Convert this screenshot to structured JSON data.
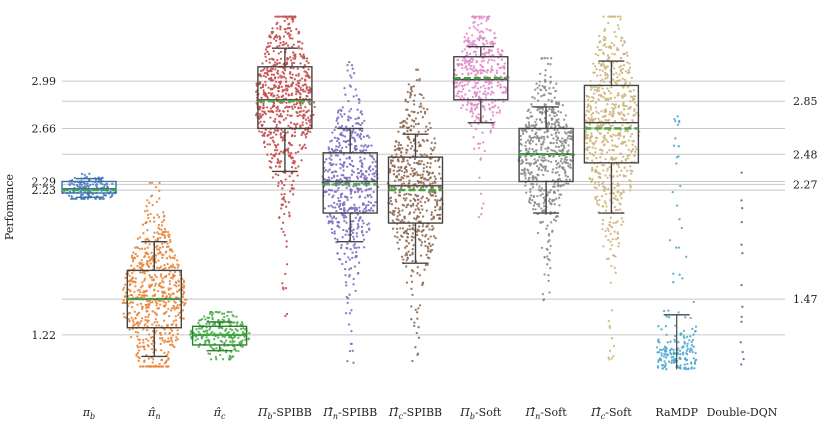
{
  "chart_data": {
    "type": "swarm-box",
    "title": "",
    "xlabel": "",
    "ylabel": "Perfomance",
    "ylim": [
      0.78,
      3.5
    ],
    "grid": true,
    "left_ticks": [
      {
        "value": 2.99,
        "label": "2.99"
      },
      {
        "value": 2.66,
        "label": "2.66"
      },
      {
        "value": 2.29,
        "label": "2.29"
      },
      {
        "value": 2.23,
        "label": "2.23"
      },
      {
        "value": 1.22,
        "label": "1.22"
      }
    ],
    "right_ticks": [
      {
        "value": 2.85,
        "label": "2.85"
      },
      {
        "value": 2.48,
        "label": "2.48"
      },
      {
        "value": 2.27,
        "label": "2.27"
      },
      {
        "value": 1.47,
        "label": "1.47"
      }
    ],
    "categories": [
      {
        "label": "πb",
        "name": "pi_b",
        "color": "#4a7fc1",
        "mean": 2.23,
        "median": 2.24,
        "q1": 2.21,
        "q3": 2.29,
        "wlo": 2.18,
        "whi": 2.31,
        "min": 2.17,
        "max": 2.35,
        "n": 160,
        "spread": 28,
        "box": true
      },
      {
        "label": "π̂n",
        "name": "pi_hat_n",
        "color": "#e8853a",
        "mean": 1.47,
        "median": 1.47,
        "q1": 1.27,
        "q3": 1.67,
        "wlo": 1.07,
        "whi": 1.87,
        "min": 1.0,
        "max": 2.28,
        "n": 650,
        "spread": 32,
        "box": true
      },
      {
        "label": "π̂c",
        "name": "pi_hat_c",
        "color": "#4cae4c",
        "mean": 1.22,
        "median": 1.22,
        "q1": 1.15,
        "q3": 1.28,
        "wlo": 1.11,
        "whi": 1.31,
        "min": 1.05,
        "max": 1.38,
        "n": 230,
        "spread": 30,
        "box": true
      },
      {
        "label": "Πb-SPIBB",
        "name": "Pi_b-SPIBB",
        "color": "#c44e4e",
        "mean": 2.85,
        "median": 2.86,
        "q1": 2.66,
        "q3": 3.09,
        "wlo": 2.36,
        "whi": 3.22,
        "min": 1.32,
        "max": 3.44,
        "n": 700,
        "spread": 30,
        "box": true
      },
      {
        "label": "Π̂n-SPIBB",
        "name": "Pi_hat_n-SPIBB",
        "color": "#7e6ec1",
        "mean": 2.27,
        "median": 2.29,
        "q1": 2.07,
        "q3": 2.49,
        "wlo": 1.87,
        "whi": 2.66,
        "min": 1.0,
        "max": 3.15,
        "n": 560,
        "spread": 28,
        "box": true
      },
      {
        "label": "Π̂c-SPIBB",
        "name": "Pi_hat_c-SPIBB",
        "color": "#8f6a52",
        "mean": 2.23,
        "median": 2.26,
        "q1": 2.0,
        "q3": 2.46,
        "wlo": 1.72,
        "whi": 2.62,
        "min": 0.98,
        "max": 3.07,
        "n": 560,
        "spread": 28,
        "box": true
      },
      {
        "label": "Πb-Soft",
        "name": "Pi_b-Soft",
        "color": "#e08ac8",
        "mean": 3.01,
        "median": 3.0,
        "q1": 2.86,
        "q3": 3.16,
        "wlo": 2.7,
        "whi": 3.23,
        "min": 2.03,
        "max": 3.44,
        "n": 420,
        "spread": 28,
        "box": true
      },
      {
        "label": "Π̂n-Soft",
        "name": "Pi_hat_n-Soft",
        "color": "#8c8c8c",
        "mean": 2.48,
        "median": 2.48,
        "q1": 2.29,
        "q3": 2.66,
        "wlo": 2.07,
        "whi": 2.81,
        "min": 1.37,
        "max": 3.15,
        "n": 560,
        "spread": 28,
        "box": true
      },
      {
        "label": "Π̂c-Soft",
        "name": "Pi_hat_c-Soft",
        "color": "#cdb67c",
        "mean": 2.66,
        "median": 2.7,
        "q1": 2.42,
        "q3": 2.96,
        "wlo": 2.07,
        "whi": 3.13,
        "min": 1.02,
        "max": 3.44,
        "n": 640,
        "spread": 28,
        "box": true
      },
      {
        "label": "RaMDP",
        "name": "RaMDP",
        "color": "#4ea9cf",
        "mean": null,
        "median": null,
        "q1": null,
        "q3": null,
        "wlo": null,
        "whi": 1.36,
        "min": 0.98,
        "max": 2.75,
        "n": 190,
        "spread": 20,
        "box": false
      },
      {
        "label": "Double-DQN",
        "name": "Double-DQN",
        "color": "#5a6a9a",
        "mean": null,
        "median": null,
        "q1": null,
        "q3": null,
        "wlo": null,
        "whi": null,
        "min": 1.0,
        "max": 2.38,
        "n": 14,
        "spread": 4,
        "box": false
      }
    ]
  }
}
